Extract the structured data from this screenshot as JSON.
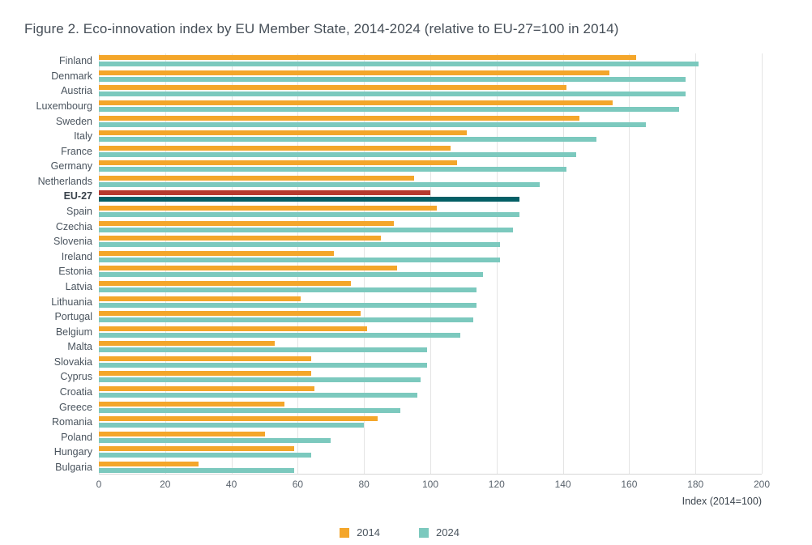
{
  "chart_data": {
    "type": "bar",
    "orientation": "horizontal",
    "title": "Figure 2. Eco-innovation index by EU Member State, 2014-2024 (relative to EU-27=100 in 2014)",
    "xlabel": "Index (2014=100)",
    "ylabel": "",
    "xlim": [
      0,
      200
    ],
    "xticks": [
      0,
      20,
      40,
      60,
      80,
      100,
      120,
      140,
      160,
      180,
      200
    ],
    "grid": true,
    "legend_position": "bottom",
    "series_colors": {
      "2014": "#F4A62A",
      "2024": "#7CC9BE"
    },
    "highlight_category": "EU-27",
    "highlight_colors": {
      "2014": "#B6392E",
      "2024": "#045F66"
    },
    "categories": [
      "Finland",
      "Denmark",
      "Austria",
      "Luxembourg",
      "Sweden",
      "Italy",
      "France",
      "Germany",
      "Netherlands",
      "EU-27",
      "Spain",
      "Czechia",
      "Slovenia",
      "Ireland",
      "Estonia",
      "Latvia",
      "Lithuania",
      "Portugal",
      "Belgium",
      "Malta",
      "Slovakia",
      "Cyprus",
      "Croatia",
      "Greece",
      "Romania",
      "Poland",
      "Hungary",
      "Bulgaria"
    ],
    "series": [
      {
        "name": "2014",
        "values": [
          162,
          154,
          141,
          155,
          145,
          111,
          106,
          108,
          95,
          100,
          102,
          89,
          85,
          71,
          90,
          76,
          61,
          79,
          81,
          53,
          64,
          64,
          65,
          56,
          84,
          50,
          59,
          30
        ]
      },
      {
        "name": "2024",
        "values": [
          181,
          177,
          177,
          175,
          165,
          150,
          144,
          141,
          133,
          127,
          127,
          125,
          121,
          121,
          116,
          114,
          114,
          113,
          109,
          99,
          99,
          97,
          96,
          91,
          80,
          70,
          64,
          59
        ]
      }
    ]
  }
}
